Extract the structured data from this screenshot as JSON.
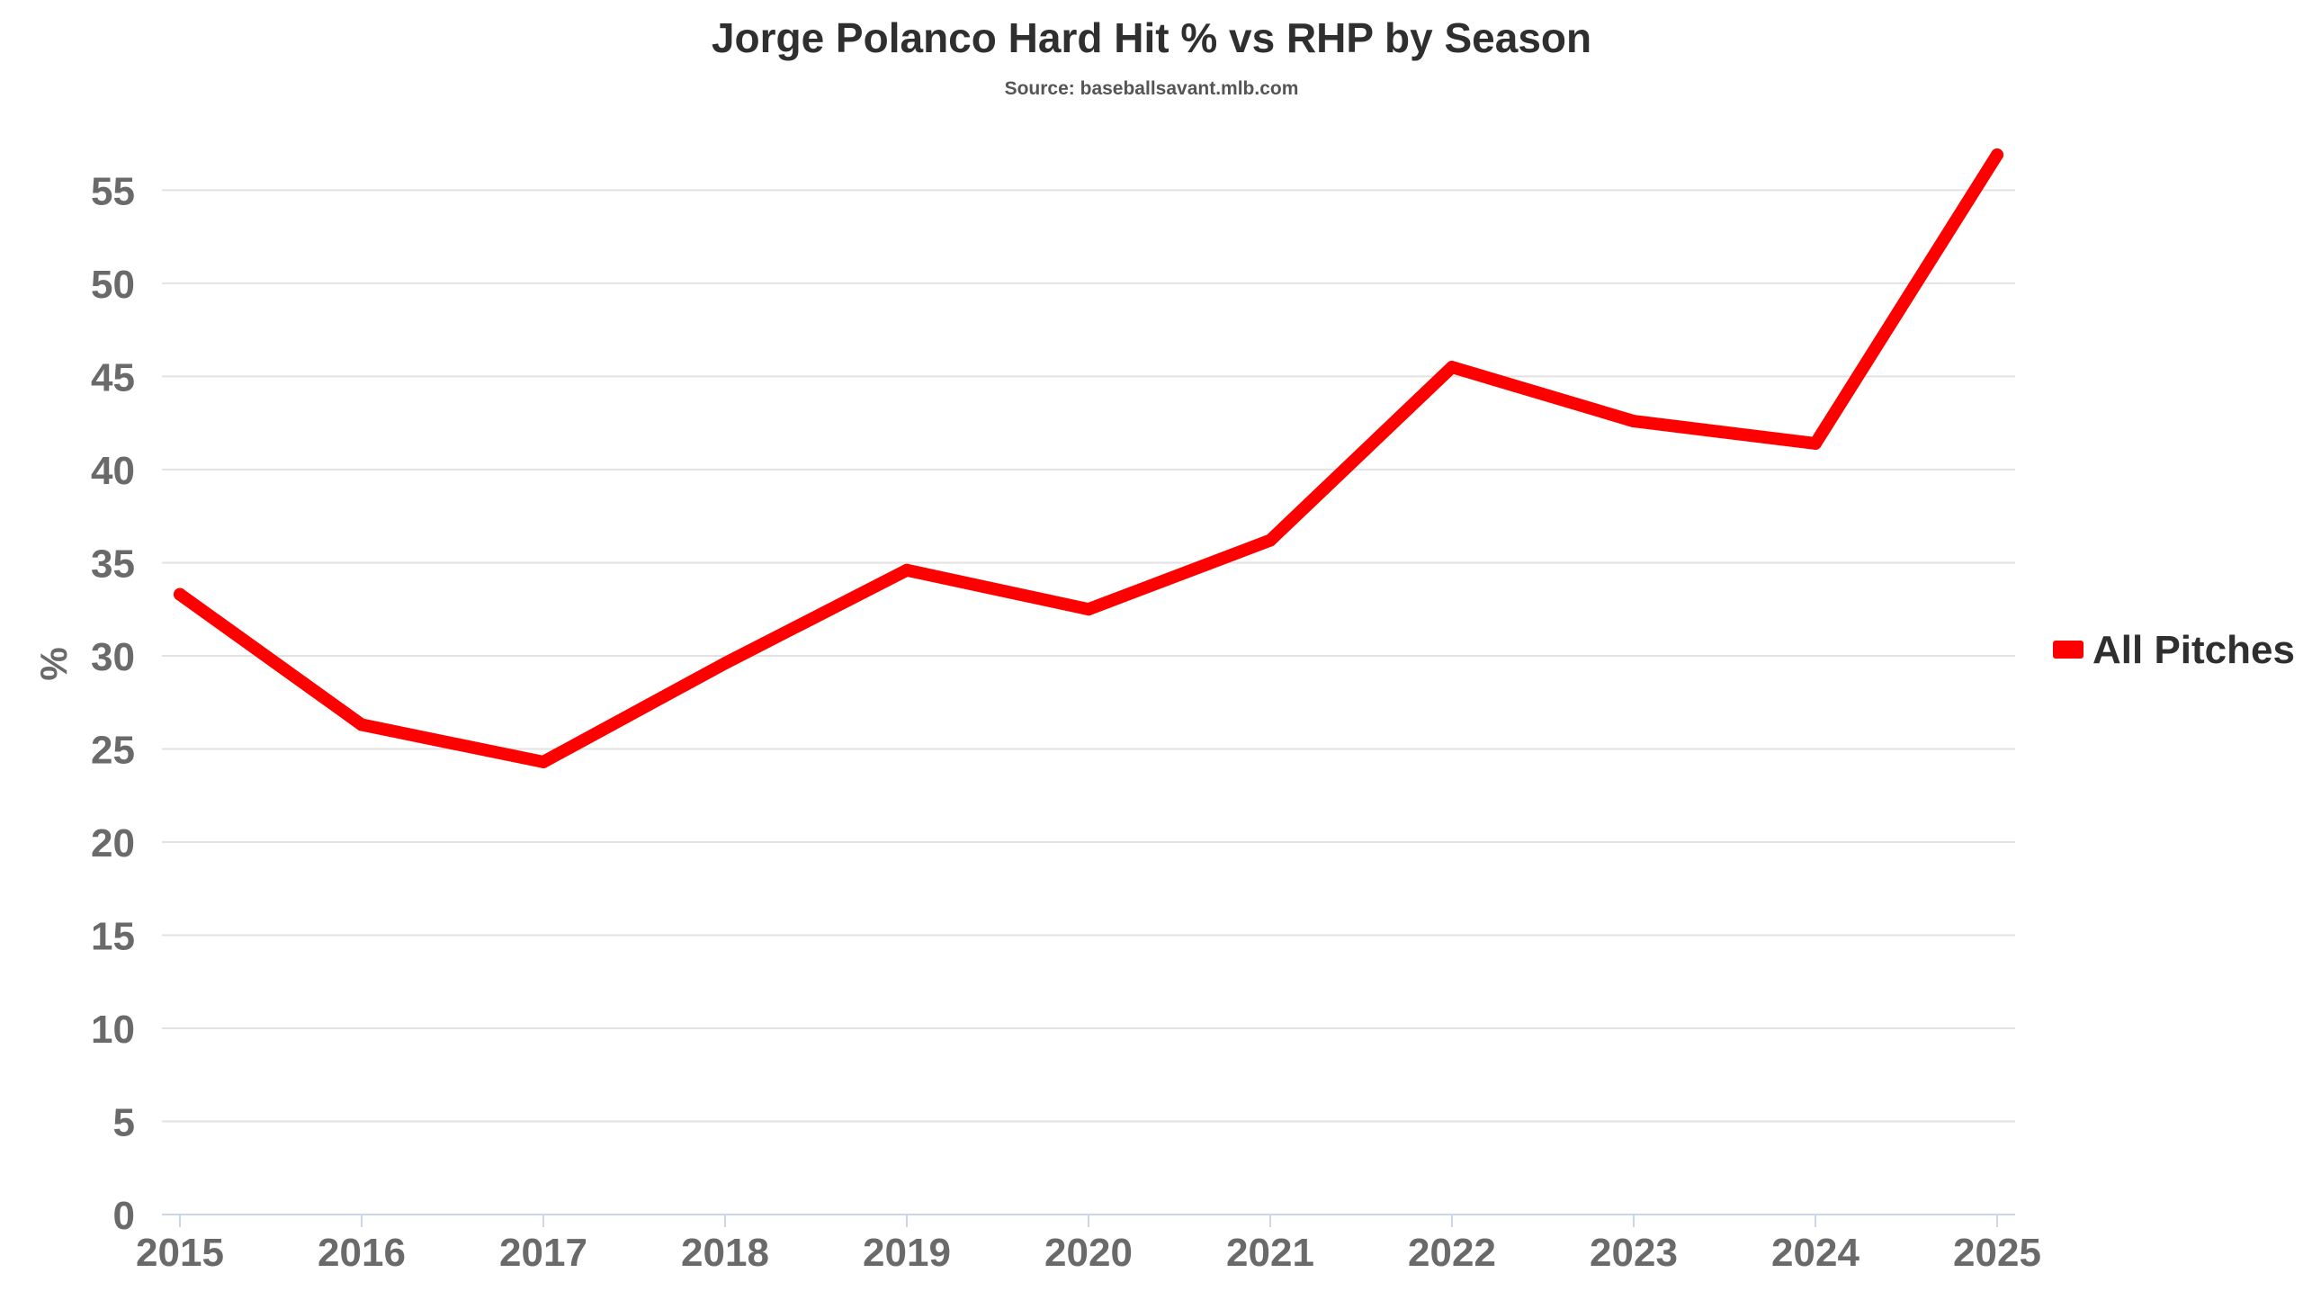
{
  "chart_data": {
    "type": "line",
    "title": "Jorge Polanco Hard Hit % vs RHP by Season",
    "subtitle": "Source: baseballsavant.mlb.com",
    "xlabel": "",
    "ylabel": "%",
    "categories": [
      "2015",
      "2016",
      "2017",
      "2018",
      "2019",
      "2020",
      "2021",
      "2022",
      "2023",
      "2024",
      "2025"
    ],
    "series": [
      {
        "name": "All Pitches",
        "color": "#ff0000",
        "values": [
          33.3,
          26.3,
          24.3,
          29.6,
          34.6,
          32.5,
          36.2,
          45.5,
          42.6,
          41.4,
          56.9
        ]
      }
    ],
    "ylim": [
      0,
      57
    ],
    "yticks": [
      0,
      5,
      10,
      15,
      20,
      25,
      30,
      35,
      40,
      45,
      50,
      55
    ],
    "grid": true,
    "legend": "right"
  }
}
